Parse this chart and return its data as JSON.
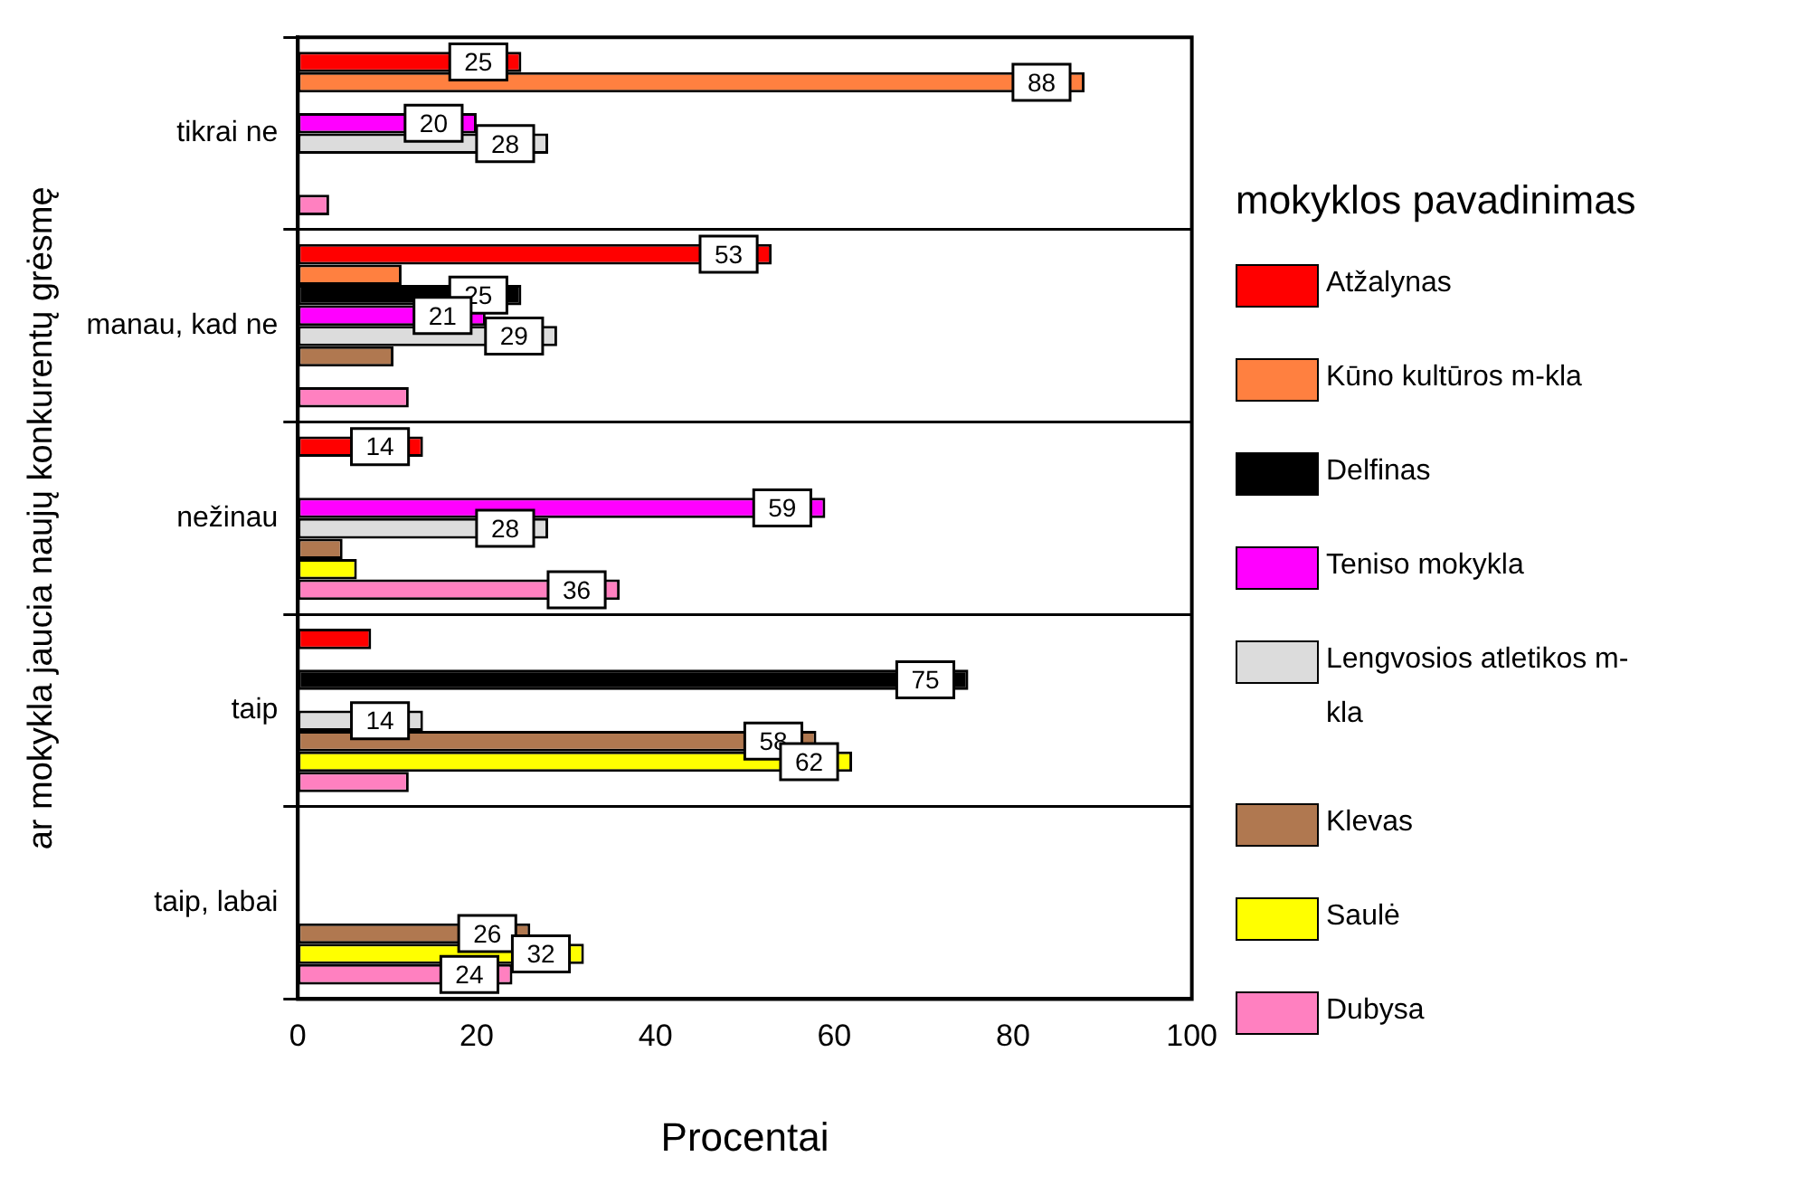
{
  "chart_data": {
    "type": "bar",
    "orientation": "horizontal",
    "xlabel": "Procentai",
    "ylabel": "ar mokykla jaucia naujų konkurentų grėsmę",
    "legend_title": "mokyklos pavadinimas",
    "legend": "right",
    "grid": "y",
    "categories": [
      "tikrai ne",
      "manau, kad ne",
      "nežinau",
      "taip",
      "taip, labai"
    ],
    "xlim": [
      0,
      100
    ],
    "xticks": [
      0,
      20,
      40,
      60,
      80,
      100
    ],
    "series": [
      {
        "name": "Atžalynas",
        "color": "#ff0000",
        "values": [
          25,
          53,
          14,
          8.2,
          null
        ],
        "value_labels": [
          "25",
          "53",
          "14",
          null,
          null
        ]
      },
      {
        "name": "Kūno kultūros m-kla",
        "color": "#ff8040",
        "values": [
          88,
          11.6,
          null,
          null,
          null
        ],
        "value_labels": [
          "88",
          null,
          null,
          null,
          null
        ]
      },
      {
        "name": "Delfinas",
        "color": "#000000",
        "values": [
          null,
          25,
          null,
          75,
          null
        ],
        "value_labels": [
          null,
          "25",
          null,
          "75",
          null
        ]
      },
      {
        "name": "Teniso mokykla",
        "color": "#ff00ff",
        "values": [
          20,
          21,
          59,
          null,
          null
        ],
        "value_labels": [
          "20",
          "21",
          "59",
          null,
          null
        ]
      },
      {
        "name": "Lengvosios atletikos m-kla",
        "color": "#dcdcdc",
        "values": [
          28,
          29,
          28,
          14,
          null
        ],
        "value_labels": [
          "28",
          "29",
          "28",
          "14",
          null
        ]
      },
      {
        "name": "Klevas",
        "color": "#b07850",
        "values": [
          null,
          10.7,
          5.0,
          58,
          26
        ],
        "value_labels": [
          null,
          null,
          null,
          "58",
          "26"
        ]
      },
      {
        "name": "Saulė",
        "color": "#ffff00",
        "values": [
          null,
          null,
          6.6,
          62,
          32
        ],
        "value_labels": [
          null,
          null,
          null,
          "62",
          "32"
        ]
      },
      {
        "name": "Dubysa",
        "color": "#ff80c0",
        "values": [
          3.5,
          12.4,
          36,
          12.4,
          24
        ],
        "value_labels": [
          null,
          null,
          "36",
          null,
          "24"
        ]
      }
    ]
  }
}
